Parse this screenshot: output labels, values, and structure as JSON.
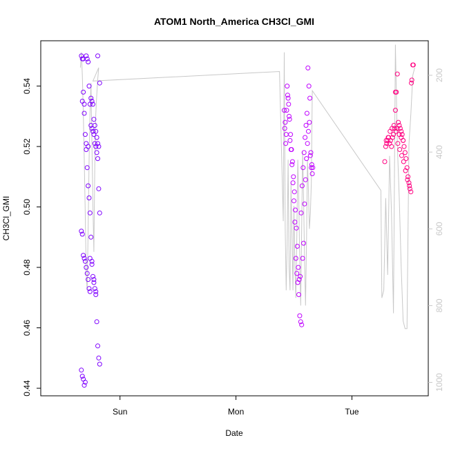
{
  "chart_data": {
    "type": "scatter",
    "title": "ATOM1 North_America CH3Cl_GMI",
    "xlabel": "Date",
    "ylabel": "CH3Cl_GMI",
    "x_ticks": [
      "Sun",
      "Mon",
      "Tue"
    ],
    "xlim_hours": [
      -16.4,
      63.8
    ],
    "x_tick_hours": [
      0,
      24,
      48
    ],
    "ylim": [
      0.4375,
      0.555
    ],
    "y_ticks": [
      0.44,
      0.46,
      0.48,
      0.5,
      0.52,
      0.54
    ],
    "y2_ticks": [
      200,
      400,
      600,
      800,
      1000
    ],
    "y2lim": [
      1035,
      110
    ],
    "grid": false,
    "legend": "none",
    "colors": {
      "early": "#7f00ff",
      "mid": "#bf00ff",
      "late": "#ff0080",
      "altitude_line": "#c8c8c8"
    },
    "series": [
      {
        "color_group": "early",
        "x_hours": [
          -8.0,
          -7.8,
          -7.6,
          -7.4,
          -7.2,
          -7.0,
          -6.8,
          -6.6,
          -6.4,
          -6.2,
          -6.0,
          -5.8,
          -5.6,
          -5.4,
          -5.2,
          -5.0,
          -4.8,
          -4.6,
          -4.4,
          -4.2,
          -8.0,
          -7.8,
          -7.6,
          -7.4,
          -7.2,
          -7.0,
          -6.8,
          -6.6,
          -6.4,
          -6.2,
          -6.0,
          -5.8,
          -5.6,
          -5.4,
          -5.2,
          -5.0,
          -4.8,
          -4.6,
          -4.4,
          -4.2,
          -8.0,
          -7.8,
          -7.6,
          -7.4,
          -7.2,
          -7.0,
          -6.8,
          -6.6,
          -6.4,
          -6.2,
          -6.0,
          -5.8,
          -5.6,
          -5.4,
          -5.2,
          -5.0,
          -4.8,
          -4.6,
          -4.4,
          -4.2,
          -7.8,
          -7.4,
          -7.0,
          -6.6,
          -6.2,
          -5.8,
          -5.4,
          -5.0,
          -4.6,
          -7.6
        ],
        "y_values": [
          0.55,
          0.549,
          0.538,
          0.531,
          0.524,
          0.519,
          0.513,
          0.507,
          0.503,
          0.498,
          0.49,
          0.481,
          0.477,
          0.475,
          0.473,
          0.471,
          0.462,
          0.454,
          0.45,
          0.448,
          0.446,
          0.444,
          0.443,
          0.441,
          0.442,
          0.55,
          0.549,
          0.548,
          0.54,
          0.534,
          0.527,
          0.526,
          0.525,
          0.524,
          0.521,
          0.52,
          0.518,
          0.516,
          0.506,
          0.498,
          0.492,
          0.491,
          0.484,
          0.483,
          0.482,
          0.48,
          0.478,
          0.476,
          0.473,
          0.472,
          0.536,
          0.535,
          0.534,
          0.529,
          0.527,
          0.525,
          0.523,
          0.521,
          0.52,
          0.541,
          0.535,
          0.534,
          0.521,
          0.52,
          0.483,
          0.482,
          0.476,
          0.472,
          0.55,
          0.549
        ]
      },
      {
        "color_group": "mid",
        "x_hours": [
          34.0,
          34.2,
          34.4,
          34.6,
          34.8,
          35.0,
          35.2,
          35.4,
          35.6,
          35.8,
          36.0,
          36.2,
          36.4,
          36.6,
          36.8,
          37.0,
          37.2,
          37.4,
          37.6,
          37.8,
          38.0,
          38.2,
          38.4,
          38.6,
          38.8,
          39.0,
          39.2,
          39.4,
          39.6,
          39.8,
          34.1,
          34.3,
          34.5,
          34.7,
          34.9,
          35.1,
          35.3,
          35.5,
          35.7,
          35.9,
          36.1,
          36.3,
          36.5,
          36.7,
          36.9,
          37.1,
          37.3,
          37.5,
          37.7,
          37.9,
          38.1,
          38.3,
          38.5,
          38.7,
          38.9,
          39.1,
          39.3,
          39.5,
          39.7,
          39.9
        ],
        "y_values": [
          0.532,
          0.528,
          0.524,
          0.54,
          0.536,
          0.53,
          0.522,
          0.519,
          0.514,
          0.508,
          0.502,
          0.495,
          0.483,
          0.478,
          0.475,
          0.471,
          0.464,
          0.462,
          0.461,
          0.483,
          0.488,
          0.501,
          0.509,
          0.516,
          0.521,
          0.525,
          0.528,
          0.517,
          0.513,
          0.511,
          0.526,
          0.521,
          0.532,
          0.537,
          0.534,
          0.529,
          0.524,
          0.519,
          0.515,
          0.51,
          0.505,
          0.499,
          0.493,
          0.487,
          0.48,
          0.476,
          0.477,
          0.498,
          0.507,
          0.513,
          0.518,
          0.523,
          0.527,
          0.531,
          0.546,
          0.54,
          0.536,
          0.518,
          0.514,
          0.513
        ]
      },
      {
        "color_group": "late",
        "x_hours": [
          54.8,
          55.0,
          55.2,
          55.4,
          55.6,
          55.8,
          56.0,
          56.2,
          56.4,
          56.6,
          56.8,
          57.0,
          57.2,
          57.4,
          57.6,
          57.8,
          58.0,
          58.2,
          58.4,
          58.6,
          58.8,
          59.0,
          59.2,
          59.4,
          59.6,
          59.8,
          60.0,
          60.2,
          60.4,
          60.6,
          55.1,
          55.5,
          55.9,
          56.3,
          56.7,
          57.1,
          57.5,
          57.9,
          58.3,
          58.7,
          59.1,
          59.5,
          59.9,
          60.3,
          60.7,
          57.0,
          57.4,
          57.8,
          58.2,
          58.6
        ],
        "y_values": [
          0.515,
          0.52,
          0.521,
          0.522,
          0.523,
          0.521,
          0.522,
          0.52,
          0.523,
          0.524,
          0.526,
          0.532,
          0.538,
          0.544,
          0.528,
          0.527,
          0.526,
          0.525,
          0.524,
          0.522,
          0.52,
          0.518,
          0.516,
          0.513,
          0.51,
          0.508,
          0.506,
          0.505,
          0.542,
          0.547,
          0.522,
          0.523,
          0.525,
          0.526,
          0.527,
          0.525,
          0.521,
          0.519,
          0.517,
          0.515,
          0.512,
          0.509,
          0.507,
          0.541,
          0.547,
          0.538,
          0.526,
          0.524,
          0.523,
          0.522
        ]
      }
    ],
    "altitude_line": {
      "x_hours": [
        -8.2,
        -8.0,
        -7.8,
        -7.6,
        -7.4,
        -7.2,
        -7.0,
        -6.8,
        -6.6,
        -6.4,
        -6.2,
        -6.0,
        -5.8,
        -5.6,
        -5.4,
        -5.2,
        -5.0,
        -4.8,
        -4.6,
        -4.4,
        -5.6,
        33.0,
        33.8,
        34.0,
        34.2,
        34.4,
        34.6,
        34.8,
        35.0,
        35.2,
        35.4,
        35.6,
        35.8,
        36.0,
        36.2,
        36.4,
        36.6,
        36.8,
        37.0,
        37.2,
        37.4,
        37.6,
        37.8,
        38.0,
        38.2,
        38.4,
        38.6,
        38.8,
        39.0,
        39.2,
        39.4,
        39.6,
        39.8,
        54.0,
        54.2,
        54.6,
        55.0,
        55.4,
        55.8,
        56.2,
        56.6,
        57.0,
        57.4,
        57.8,
        58.2,
        58.6,
        59.0,
        59.4,
        59.8,
        60.2,
        60.6,
        61.0
      ],
      "pressure_hpa": [
        180,
        140,
        200,
        300,
        420,
        560,
        720,
        760,
        600,
        420,
        300,
        220,
        380,
        540,
        660,
        420,
        300,
        250,
        210,
        180,
        215,
        190,
        580,
        140,
        600,
        760,
        640,
        420,
        700,
        760,
        480,
        620,
        760,
        540,
        700,
        780,
        620,
        420,
        520,
        680,
        800,
        600,
        400,
        520,
        680,
        800,
        640,
        420,
        500,
        600,
        560,
        480,
        240,
        500,
        780,
        760,
        520,
        720,
        410,
        560,
        820,
        120,
        380,
        520,
        700,
        840,
        860,
        860,
        380,
        300,
        200,
        180
      ]
    }
  }
}
